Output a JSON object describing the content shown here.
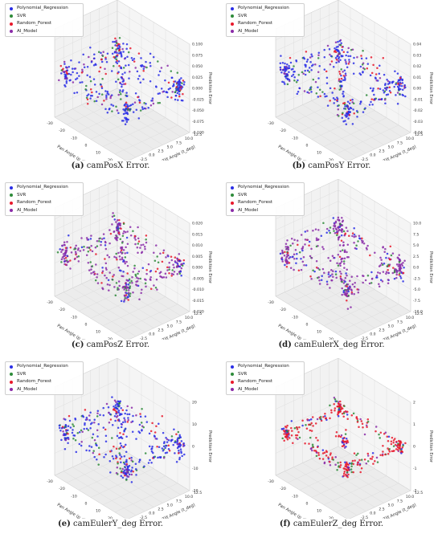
{
  "colors": {
    "Polynomial_Regression": "#2a2ee6",
    "SVR": "#2e8b3a",
    "Random_Forest": "#e8192c",
    "AI_Model": "#8a2ba8"
  },
  "chart_data": [
    {
      "type": "scatter3d",
      "caption_label": "(a)",
      "caption_text": "camPosX Error.",
      "xlabel": "Pan Angle (p_deg)",
      "ylabel": "Tilt Angle (t_deg)",
      "zlabel": "Prediction Error",
      "xlim": [
        -30,
        30
      ],
      "ylim": [
        -5,
        12.5
      ],
      "zlim": [
        -0.1,
        0.1
      ],
      "xticks": [
        "-30",
        "-20",
        "-10",
        "0",
        "10",
        "20",
        "30"
      ],
      "yticks": [
        "-5.0",
        "-2.5",
        "0.0",
        "2.5",
        "5.0",
        "7.5",
        "10.0",
        "12.5"
      ],
      "zticks": [
        "-0.100",
        "-0.075",
        "-0.050",
        "-0.025",
        "0.000",
        "0.025",
        "0.050",
        "0.075",
        "0.100"
      ],
      "series": [
        {
          "name": "Polynomial_Regression"
        },
        {
          "name": "SVR"
        },
        {
          "name": "Random_Forest"
        },
        {
          "name": "AI_Model"
        }
      ],
      "dominant": "Polynomial_Regression",
      "shape": "spread"
    },
    {
      "type": "scatter3d",
      "caption_label": "(b)",
      "caption_text": "camPosY Error.",
      "xlabel": "Pan Angle (p_deg)",
      "ylabel": "Tilt Angle (t_deg)",
      "zlabel": "Prediction Error",
      "xlim": [
        -30,
        30
      ],
      "ylim": [
        -5,
        12.5
      ],
      "zlim": [
        -0.04,
        0.04
      ],
      "xticks": [
        "-30",
        "-20",
        "-10",
        "0",
        "10",
        "20",
        "30"
      ],
      "yticks": [
        "-5.0",
        "-2.5",
        "0.0",
        "2.5",
        "5.0",
        "7.5",
        "10.0",
        "12.5"
      ],
      "zticks": [
        "-0.04",
        "-0.03",
        "-0.02",
        "-0.01",
        "0.00",
        "0.01",
        "0.02",
        "0.03",
        "0.04"
      ],
      "series": [
        {
          "name": "Polynomial_Regression"
        },
        {
          "name": "SVR"
        },
        {
          "name": "Random_Forest"
        },
        {
          "name": "AI_Model"
        }
      ],
      "dominant": "Polynomial_Regression",
      "shape": "spread"
    },
    {
      "type": "scatter3d",
      "caption_label": "(c)",
      "caption_text": "camPosZ Error.",
      "xlabel": "Pan Angle (p_deg)",
      "ylabel": "Tilt Angle (t_deg)",
      "zlabel": "Prediction Error",
      "xlim": [
        -30,
        30
      ],
      "ylim": [
        -5,
        12.5
      ],
      "zlim": [
        -0.02,
        0.02
      ],
      "xticks": [
        "-30",
        "-20",
        "-10",
        "0",
        "10",
        "20",
        "30"
      ],
      "yticks": [
        "-5.0",
        "-2.5",
        "0.0",
        "2.5",
        "5.0",
        "7.5",
        "10.0",
        "12.5"
      ],
      "zticks": [
        "-0.020",
        "-0.015",
        "-0.010",
        "-0.005",
        "0.000",
        "0.005",
        "0.010",
        "0.015",
        "0.020"
      ],
      "series": [
        {
          "name": "Polynomial_Regression"
        },
        {
          "name": "SVR"
        },
        {
          "name": "Random_Forest"
        },
        {
          "name": "AI_Model"
        }
      ],
      "dominant": "AI_Model",
      "shape": "spread"
    },
    {
      "type": "scatter3d",
      "caption_label": "(d)",
      "caption_text": "camEulerX_deg Error.",
      "xlabel": "Pan Angle (p_deg)",
      "ylabel": "Tilt Angle (t_deg)",
      "zlabel": "Prediction Error",
      "xlim": [
        -30,
        30
      ],
      "ylim": [
        -5,
        12.5
      ],
      "zlim": [
        -10,
        10
      ],
      "xticks": [
        "-30",
        "-20",
        "-10",
        "0",
        "10",
        "20",
        "30"
      ],
      "yticks": [
        "-5.0",
        "-2.5",
        "0.0",
        "2.5",
        "5.0",
        "7.5",
        "10.0",
        "12.5"
      ],
      "zticks": [
        "-10.0",
        "-7.5",
        "-5.0",
        "-2.5",
        "0.0",
        "2.5",
        "5.0",
        "7.5",
        "10.0"
      ],
      "series": [
        {
          "name": "Polynomial_Regression"
        },
        {
          "name": "SVR"
        },
        {
          "name": "Random_Forest"
        },
        {
          "name": "AI_Model"
        }
      ],
      "dominant": "AI_Model",
      "shape": "spread"
    },
    {
      "type": "scatter3d",
      "caption_label": "(e)",
      "caption_text": "camEulerY_deg Error.",
      "xlabel": "Pan Angle (p_deg)",
      "ylabel": "Tilt Angle (t_deg)",
      "zlabel": "Prediction Error",
      "xlim": [
        -30,
        30
      ],
      "ylim": [
        -5,
        12.5
      ],
      "zlim": [
        -20,
        20
      ],
      "xticks": [
        "-30",
        "-20",
        "-10",
        "0",
        "10",
        "20",
        "30"
      ],
      "yticks": [
        "-5.0",
        "-2.5",
        "0.0",
        "2.5",
        "5.0",
        "7.5",
        "10.0",
        "12.5"
      ],
      "zticks": [
        "-20",
        "-10",
        "0",
        "10",
        "20"
      ],
      "series": [
        {
          "name": "Polynomial_Regression"
        },
        {
          "name": "SVR"
        },
        {
          "name": "Random_Forest"
        },
        {
          "name": "AI_Model"
        }
      ],
      "dominant": "Polynomial_Regression",
      "shape": "spread"
    },
    {
      "type": "scatter3d",
      "caption_label": "(f)",
      "caption_text": "camEulerZ_deg Error.",
      "xlabel": "Pan Angle (p_deg)",
      "ylabel": "Tilt Angle (t_deg)",
      "zlabel": "Prediction Error",
      "xlim": [
        -30,
        30
      ],
      "ylim": [
        -5,
        12.5
      ],
      "zlim": [
        -2,
        2
      ],
      "xticks": [
        "-30",
        "-20",
        "-10",
        "0",
        "10",
        "20",
        "30"
      ],
      "yticks": [
        "-5.0",
        "-2.5",
        "0.0",
        "2.5",
        "5.0",
        "7.5",
        "10.0",
        "12.5"
      ],
      "zticks": [
        "-2",
        "-1",
        "0",
        "1",
        "2"
      ],
      "series": [
        {
          "name": "Polynomial_Regression"
        },
        {
          "name": "SVR"
        },
        {
          "name": "Random_Forest"
        },
        {
          "name": "AI_Model"
        }
      ],
      "dominant": "Random_Forest",
      "shape": "tight"
    }
  ]
}
